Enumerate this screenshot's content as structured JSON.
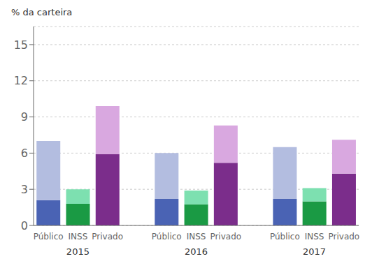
{
  "chart_data": {
    "type": "bar",
    "stacked": true,
    "ylabel": "% da carteira",
    "groups": [
      "2015",
      "2016",
      "2017"
    ],
    "categories": [
      "Público",
      "INSS",
      "Privado"
    ],
    "series": [
      {
        "colors": [
          "#4a63b4",
          "#1a9a44",
          "#7b2d8b"
        ],
        "values": [
          [
            2.1,
            1.8,
            5.9
          ],
          [
            2.2,
            1.75,
            5.2
          ],
          [
            2.2,
            2.0,
            4.3
          ]
        ]
      },
      {
        "colors": [
          "#b3bde0",
          "#7de0b0",
          "#d9a8e0"
        ],
        "values": [
          [
            4.9,
            1.2,
            4.0
          ],
          [
            3.8,
            1.15,
            3.1
          ],
          [
            4.3,
            1.1,
            2.8
          ]
        ]
      }
    ],
    "ylim": [
      0,
      16.5
    ],
    "yticks": [
      0,
      3,
      6,
      9,
      12,
      15
    ],
    "grid": true
  }
}
